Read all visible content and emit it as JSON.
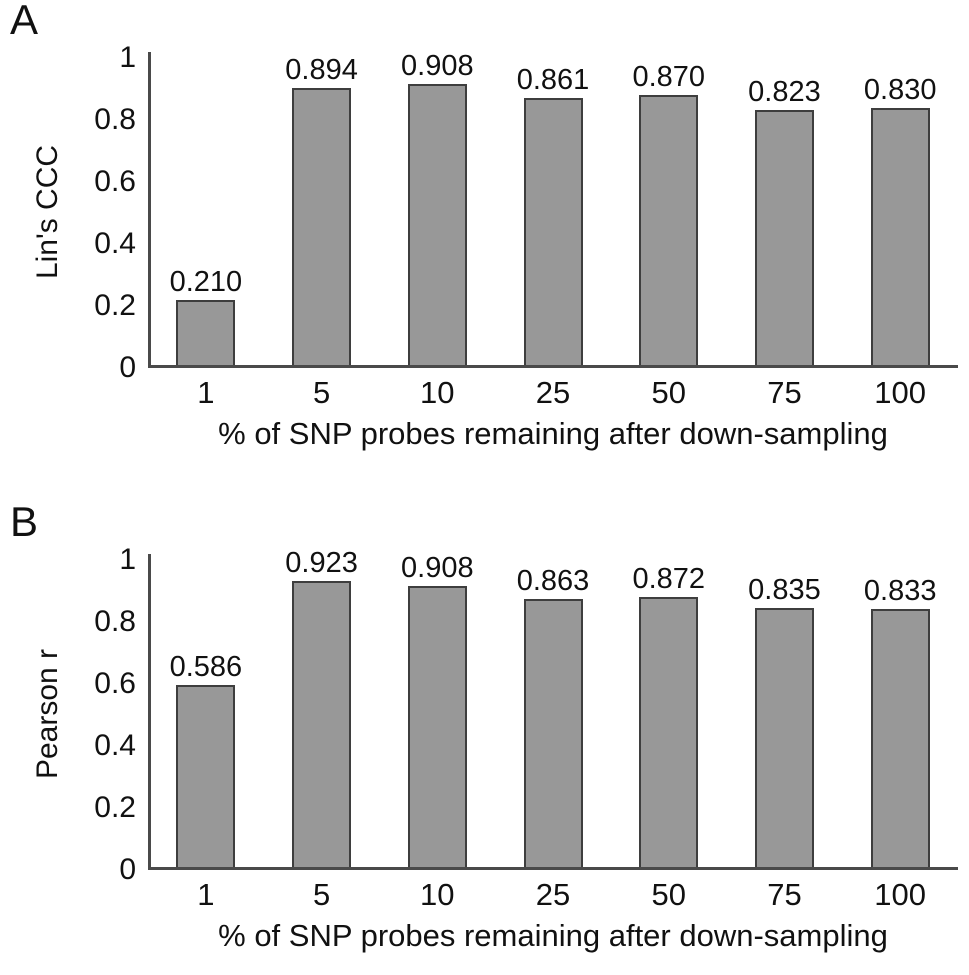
{
  "colors": {
    "background": "#ffffff",
    "bar_fill": "#989898",
    "bar_border": "#3e3e3e",
    "axis": "#4a4a4a",
    "text": "#111111"
  },
  "chart_data": [
    {
      "type": "bar",
      "panel_letter": "A",
      "title": "",
      "ylabel": "Lin's CCC",
      "xlabel": "% of SNP probes remaining after down-sampling",
      "categories": [
        "1",
        "5",
        "10",
        "25",
        "50",
        "75",
        "100"
      ],
      "values": [
        0.21,
        0.894,
        0.908,
        0.861,
        0.87,
        0.823,
        0.83
      ],
      "value_labels": [
        "0.210",
        "0.894",
        "0.908",
        "0.861",
        "0.870",
        "0.823",
        "0.830"
      ],
      "ylim": [
        0,
        1
      ],
      "ytick_labels": [
        "0",
        "0.2",
        "0.4",
        "0.6",
        "0.8",
        "1"
      ],
      "bar_color": "#989898",
      "grid": false,
      "legend": false
    },
    {
      "type": "bar",
      "panel_letter": "B",
      "title": "",
      "ylabel": "Pearson r",
      "xlabel": "% of SNP probes remaining after down-sampling",
      "categories": [
        "1",
        "5",
        "10",
        "25",
        "50",
        "75",
        "100"
      ],
      "values": [
        0.586,
        0.923,
        0.908,
        0.863,
        0.872,
        0.835,
        0.833
      ],
      "value_labels": [
        "0.586",
        "0.923",
        "0.908",
        "0.863",
        "0.872",
        "0.835",
        "0.833"
      ],
      "ylim": [
        0,
        1
      ],
      "ytick_labels": [
        "0",
        "0.2",
        "0.4",
        "0.6",
        "0.8",
        "1"
      ],
      "bar_color": "#989898",
      "grid": false,
      "legend": false
    }
  ]
}
